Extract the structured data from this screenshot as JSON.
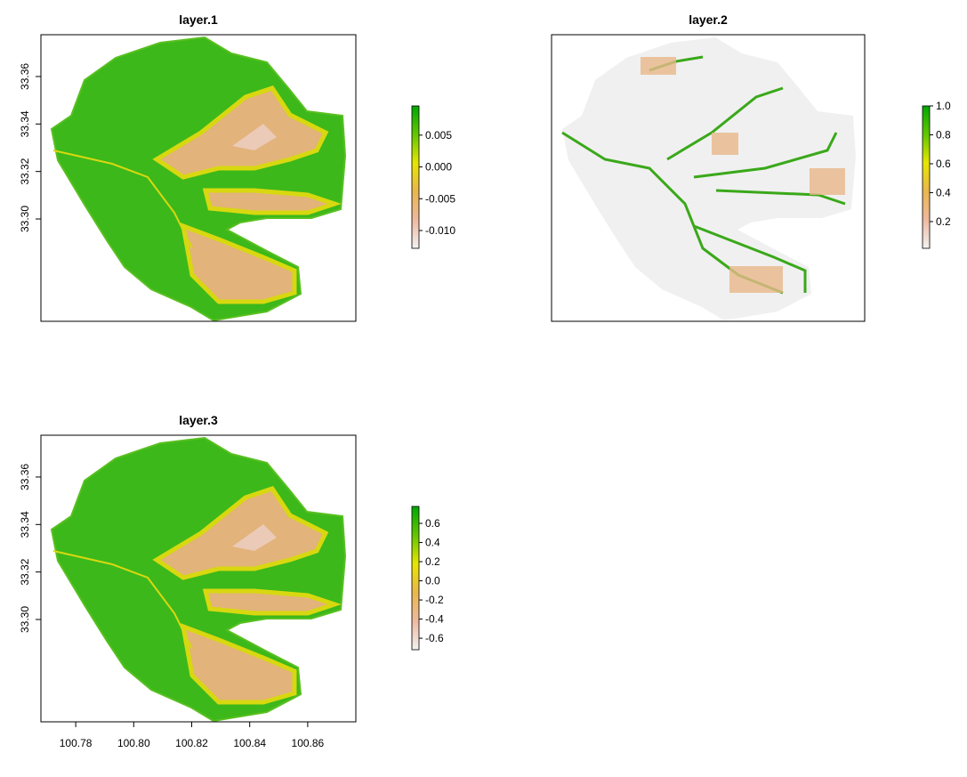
{
  "chart_data": [
    {
      "type": "raster",
      "title": "layer.1",
      "xlim": [
        100.768,
        100.8766
      ],
      "ylim": [
        33.2569,
        33.3776
      ],
      "yticks": [
        {
          "value": 33.3,
          "label": "33.30"
        },
        33.32,
        33.34,
        33.36
      ],
      "zlim": [
        -0.0128,
        0.0096
      ],
      "zticks": [
        0.005,
        {
          "value": 0,
          "label": "0.000"
        },
        -0.005,
        {
          "value": -0.01,
          "label": "-0.010"
        }
      ],
      "colors": [
        "#F2F2F2",
        "#EEB99F",
        "#EAB64E",
        "#E6E600",
        "#63C600",
        "#00A600"
      ]
    },
    {
      "type": "raster",
      "title": "layer.2",
      "xlim": [
        100.768,
        100.8766
      ],
      "ylim": [
        33.2569,
        33.3776
      ],
      "zlim": [
        0.015,
        1.0
      ],
      "zticks": [
        {
          "value": 1,
          "label": "1.0"
        },
        0.8,
        0.6,
        0.4,
        0.2
      ],
      "colors": [
        "#F2F2F2",
        "#EEB99F",
        "#EAB64E",
        "#E6E600",
        "#63C600",
        "#00A600"
      ]
    },
    {
      "type": "raster",
      "title": "layer.3",
      "xlim": [
        100.768,
        100.8766
      ],
      "ylim": [
        33.2569,
        33.3776
      ],
      "xticks": [
        100.78,
        {
          "value": 100.8,
          "label": "100.80"
        },
        100.82,
        100.84,
        100.86
      ],
      "yticks": [
        {
          "value": 33.3,
          "label": "33.30"
        },
        33.32,
        33.34,
        33.36
      ],
      "zlim": [
        -0.72,
        0.777
      ],
      "zticks": [
        0.6,
        0.4,
        0.2,
        {
          "value": 0,
          "label": "0.0"
        },
        -0.2,
        -0.4,
        -0.6
      ],
      "colors": [
        "#F2F2F2",
        "#EEB99F",
        "#EAB64E",
        "#E6E600",
        "#63C600",
        "#00A600"
      ]
    }
  ]
}
